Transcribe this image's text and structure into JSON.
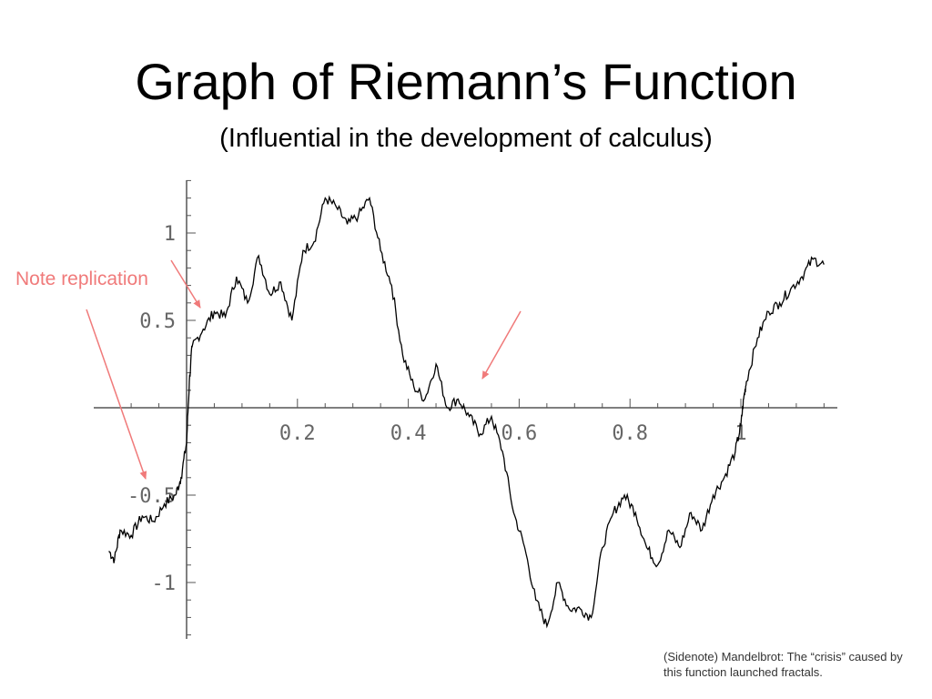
{
  "slide": {
    "title": "Graph of Riemann’s Function",
    "subtitle": "(Influential in the development of calculus)",
    "annotation": "Note replication",
    "sidenote": "(Sidenote) Mandelbrot: The “crisis” caused by this function launched fractals."
  },
  "colors": {
    "annotation": "#f07a7a",
    "curve": "#000000",
    "axis": "#555555"
  },
  "chart_data": {
    "type": "line",
    "title": "Graph of Riemann’s Function",
    "xlabel": "",
    "ylabel": "",
    "xlim": [
      -0.14,
      1.17
    ],
    "ylim": [
      -1.3,
      1.3
    ],
    "x_ticks": [
      0.2,
      0.4,
      0.6,
      0.8,
      1
    ],
    "x_tick_labels": [
      "0.2",
      "0.4",
      "0.6",
      "0.8",
      "1"
    ],
    "y_ticks": [
      1,
      0.5,
      -0.5,
      -1
    ],
    "y_tick_labels": [
      "1",
      "0.5",
      "-0.5",
      "-1"
    ],
    "grid": false,
    "series": [
      {
        "x": [
          -0.14,
          -0.13,
          -0.12,
          -0.1,
          -0.08,
          -0.06,
          -0.04,
          -0.02,
          -0.01,
          0.0,
          0.005,
          0.01,
          0.03,
          0.05,
          0.07,
          0.09,
          0.11,
          0.13,
          0.15,
          0.17,
          0.19,
          0.21,
          0.23,
          0.25,
          0.27,
          0.29,
          0.31,
          0.33,
          0.35,
          0.37,
          0.39,
          0.41,
          0.43,
          0.45,
          0.47,
          0.49,
          0.51,
          0.53,
          0.55,
          0.57,
          0.59,
          0.61,
          0.63,
          0.65,
          0.67,
          0.69,
          0.71,
          0.73,
          0.75,
          0.77,
          0.79,
          0.81,
          0.83,
          0.85,
          0.87,
          0.89,
          0.91,
          0.93,
          0.95,
          0.97,
          0.99,
          1.0,
          1.005,
          1.01,
          1.03,
          1.05,
          1.07,
          1.09,
          1.11,
          1.13,
          1.15
        ],
        "y": [
          -0.82,
          -0.87,
          -0.7,
          -0.73,
          -0.62,
          -0.65,
          -0.55,
          -0.5,
          -0.4,
          -0.2,
          0.15,
          0.35,
          0.45,
          0.55,
          0.52,
          0.75,
          0.6,
          0.87,
          0.65,
          0.72,
          0.5,
          0.9,
          0.95,
          1.2,
          1.15,
          1.05,
          1.1,
          1.2,
          0.9,
          0.7,
          0.3,
          0.12,
          0.05,
          0.25,
          0.0,
          0.05,
          -0.05,
          -0.15,
          -0.05,
          -0.25,
          -0.6,
          -0.8,
          -1.1,
          -1.25,
          -1.0,
          -1.15,
          -1.15,
          -1.2,
          -0.8,
          -0.6,
          -0.5,
          -0.6,
          -0.8,
          -0.9,
          -0.7,
          -0.8,
          -0.6,
          -0.7,
          -0.5,
          -0.4,
          -0.25,
          -0.1,
          0.05,
          0.15,
          0.4,
          0.55,
          0.6,
          0.68,
          0.75,
          0.85,
          0.82
        ]
      }
    ]
  }
}
